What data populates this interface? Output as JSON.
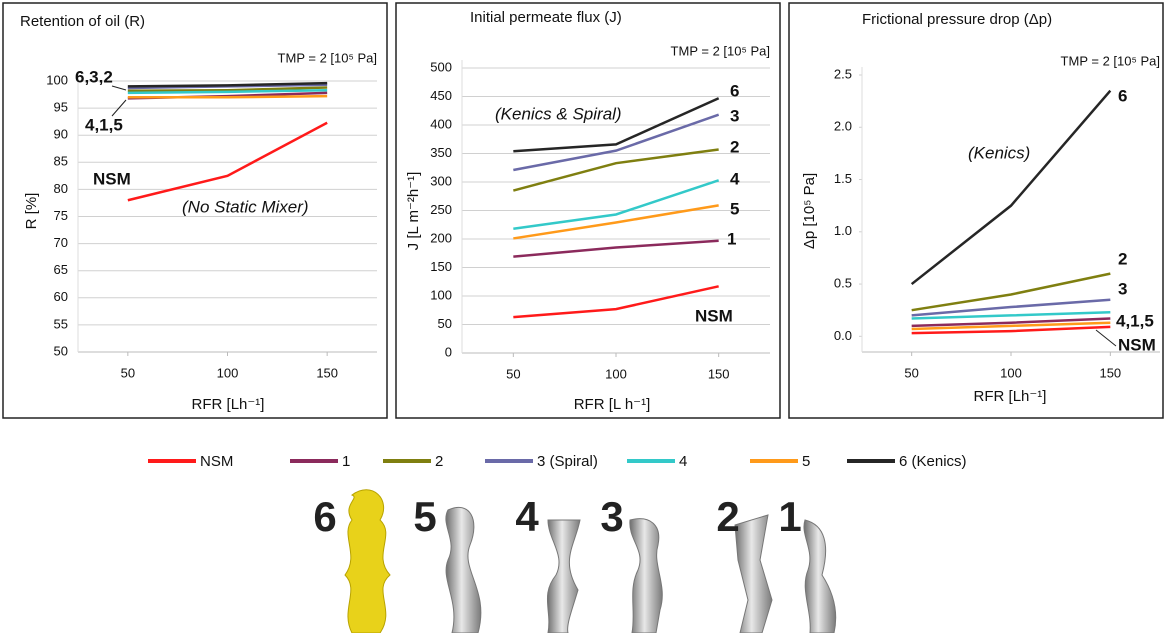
{
  "legend": [
    {
      "name": "NSM",
      "color": "#ff1a1a"
    },
    {
      "name": "1",
      "color": "#8b2a5c"
    },
    {
      "name": "2",
      "color": "#7f7f10"
    },
    {
      "name": "3 (Spiral)",
      "color": "#6a6aa8"
    },
    {
      "name": "4",
      "color": "#33c9c9"
    },
    {
      "name": "5",
      "color": "#ff9a1a"
    },
    {
      "name": "6 (Kenics)",
      "color": "#262626"
    }
  ],
  "mixer_labels": [
    "6",
    "5",
    "4",
    "3",
    "2",
    "1"
  ],
  "chart_data": [
    {
      "type": "line",
      "title": "Retention of oil (R)",
      "x_label": "RFR  [Lh⁻¹]",
      "y_label": "R [%]",
      "x": [
        50,
        100,
        150
      ],
      "xlim": [
        25,
        175
      ],
      "xticks": [
        50,
        100,
        150
      ],
      "ylim": [
        50,
        100
      ],
      "yticks": [
        50,
        55,
        60,
        65,
        70,
        75,
        80,
        85,
        90,
        95,
        100
      ],
      "grid": true,
      "series": [
        {
          "values": [
            78,
            82.5,
            92.3
          ]
        },
        {
          "values": [
            96.8,
            97.2,
            97.8
          ]
        },
        {
          "values": [
            98.2,
            98.3,
            98.8
          ]
        },
        {
          "values": [
            98.7,
            99.0,
            99.3
          ]
        },
        {
          "values": [
            97.8,
            98.0,
            98.3
          ]
        },
        {
          "values": [
            97.0,
            97.0,
            97.2
          ]
        },
        {
          "values": [
            99.0,
            99.2,
            99.6
          ]
        }
      ],
      "annotations": [
        "TMP = 2 [10⁵ Pa]",
        "6,3,2",
        "4,1,5",
        "NSM",
        "(No Static Mixer)"
      ]
    },
    {
      "type": "line",
      "title": "Initial permeate flux (J)",
      "x_label": "RFR  [L h⁻¹]",
      "y_label": "J  [L m⁻²h⁻¹]",
      "x": [
        50,
        100,
        150
      ],
      "xlim": [
        25,
        175
      ],
      "xticks": [
        50,
        100,
        150
      ],
      "ylim": [
        0,
        500
      ],
      "yticks": [
        0,
        50,
        100,
        150,
        200,
        250,
        300,
        350,
        400,
        450,
        500
      ],
      "grid": true,
      "series": [
        {
          "values": [
            63,
            77,
            117
          ]
        },
        {
          "values": [
            169,
            185,
            197
          ]
        },
        {
          "values": [
            285,
            333,
            357
          ]
        },
        {
          "values": [
            321,
            355,
            418
          ]
        },
        {
          "values": [
            218,
            243,
            303
          ]
        },
        {
          "values": [
            201,
            229,
            259
          ]
        },
        {
          "values": [
            354,
            366,
            447
          ]
        }
      ],
      "annotations": [
        "TMP = 2 [10⁵ Pa]",
        "(Kenics & Spiral)",
        "6",
        "3",
        "2",
        "4",
        "5",
        "1",
        "NSM"
      ]
    },
    {
      "type": "line",
      "title": "Frictional pressure drop (Δp)",
      "x_label": "RFR  [Lh⁻¹]",
      "y_label": "Δp  [10⁵ Pa]",
      "x": [
        50,
        100,
        150
      ],
      "xlim": [
        25,
        175
      ],
      "xticks": [
        50,
        100,
        150
      ],
      "ylim": [
        -0.15,
        2.5
      ],
      "yticks": [
        {
          "value": 0,
          "label": "0.0"
        },
        0.5,
        {
          "value": 1,
          "label": "1.0"
        },
        1.5,
        {
          "value": 2,
          "label": "2.0"
        },
        2.5
      ],
      "grid": false,
      "series": [
        {
          "values": [
            0.03,
            0.05,
            0.09
          ]
        },
        {
          "values": [
            0.1,
            0.13,
            0.17
          ]
        },
        {
          "values": [
            0.25,
            0.4,
            0.6
          ]
        },
        {
          "values": [
            0.2,
            0.28,
            0.35
          ]
        },
        {
          "values": [
            0.17,
            0.2,
            0.23
          ]
        },
        {
          "values": [
            0.07,
            0.1,
            0.13
          ]
        },
        {
          "values": [
            0.5,
            1.25,
            2.35
          ]
        }
      ],
      "annotations": [
        "TMP = 2 [10⁵ Pa]",
        "(Kenics)",
        "6",
        "2",
        "3",
        "4,1,5",
        "NSM"
      ]
    }
  ]
}
